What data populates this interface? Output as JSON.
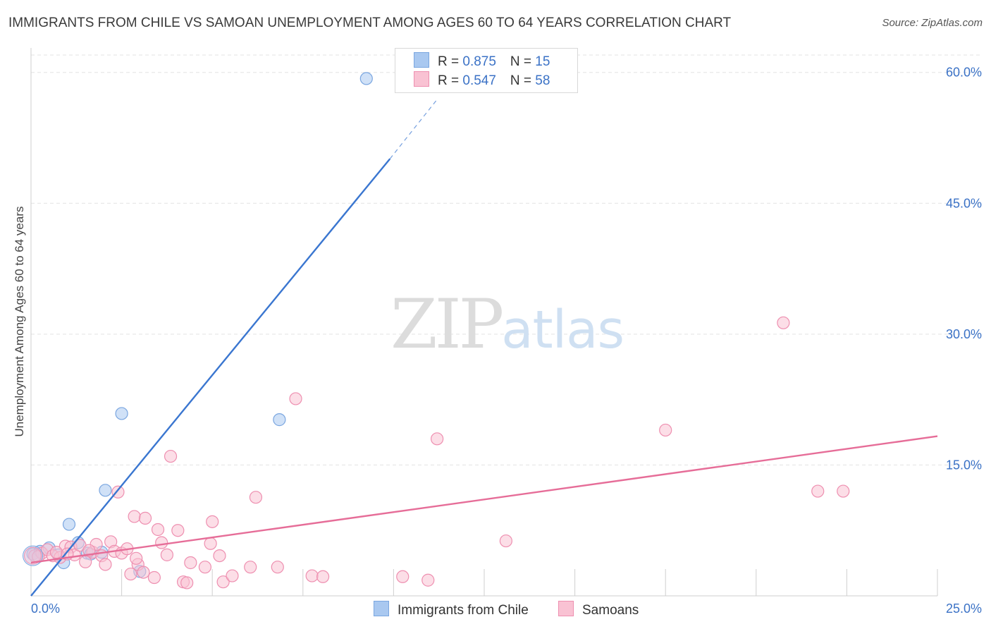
{
  "header": {
    "title": "IMMIGRANTS FROM CHILE VS SAMOAN UNEMPLOYMENT AMONG AGES 60 TO 64 YEARS CORRELATION CHART",
    "source": "Source: ZipAtlas.com"
  },
  "watermark": {
    "zip": "ZIP",
    "atlas": "atlas"
  },
  "legend": {
    "r_label": "R = ",
    "n_label": "N = ",
    "rows": [
      {
        "r": "0.875",
        "n": "15",
        "color": "#a9c8f0",
        "border": "#7aa6e0"
      },
      {
        "r": "0.547",
        "n": "58",
        "color": "#f9c2d3",
        "border": "#ee8fb0"
      }
    ]
  },
  "bottom_legend": {
    "items": [
      {
        "label": "Immigrants from Chile",
        "color": "#a9c8f0",
        "border": "#7aa6e0"
      },
      {
        "label": "Samoans",
        "color": "#f9c2d3",
        "border": "#ee8fb0"
      }
    ]
  },
  "chart_data": {
    "type": "scatter",
    "title": "IMMIGRANTS FROM CHILE VS SAMOAN UNEMPLOYMENT AMONG AGES 60 TO 64 YEARS CORRELATION CHART",
    "xlabel": "",
    "ylabel": "Unemployment Among Ages 60 to 64 years",
    "xlim": [
      0,
      25
    ],
    "ylim": [
      0,
      62
    ],
    "x_tick_labels": [
      "0.0%",
      "25.0%"
    ],
    "y_ticks": [
      15,
      30,
      45,
      60
    ],
    "y_tick_labels": [
      "15.0%",
      "30.0%",
      "45.0%",
      "60.0%"
    ],
    "grid": true,
    "legend_position": "top-center",
    "series": [
      {
        "name": "Immigrants from Chile",
        "color": "#a9c8f0",
        "stroke": "#7aa6e0",
        "line_color": "#3a76d0",
        "trend": {
          "x0": 0.0,
          "y0": 0.0,
          "x1": 9.9,
          "y1": 50.1,
          "dash_to_x": 11.2,
          "dash_to_y": 56.9
        },
        "points": [
          [
            0.05,
            4.8
          ],
          [
            0.25,
            5.1
          ],
          [
            0.5,
            5.5
          ],
          [
            0.75,
            4.7
          ],
          [
            0.9,
            3.8
          ],
          [
            1.05,
            8.2
          ],
          [
            1.3,
            6.1
          ],
          [
            1.55,
            4.9
          ],
          [
            1.65,
            4.8
          ],
          [
            1.95,
            5.0
          ],
          [
            2.05,
            12.1
          ],
          [
            2.5,
            20.9
          ],
          [
            3.0,
            2.8
          ],
          [
            6.85,
            20.2
          ],
          [
            9.25,
            59.3
          ]
        ]
      },
      {
        "name": "Samoans",
        "color": "#f9c2d3",
        "stroke": "#ee8fb0",
        "line_color": "#e66d98",
        "trend": {
          "x0": 0.0,
          "y0": 3.8,
          "x1": 25.0,
          "y1": 18.3
        },
        "points": [
          [
            0.1,
            4.6
          ],
          [
            0.3,
            4.9
          ],
          [
            0.45,
            5.3
          ],
          [
            0.6,
            4.6
          ],
          [
            0.8,
            4.4
          ],
          [
            0.95,
            5.7
          ],
          [
            1.1,
            5.6
          ],
          [
            1.2,
            4.7
          ],
          [
            1.35,
            5.8
          ],
          [
            1.5,
            3.9
          ],
          [
            1.7,
            5.0
          ],
          [
            1.8,
            5.9
          ],
          [
            1.95,
            4.6
          ],
          [
            2.05,
            3.6
          ],
          [
            2.2,
            6.2
          ],
          [
            2.3,
            5.1
          ],
          [
            2.4,
            11.9
          ],
          [
            2.5,
            4.9
          ],
          [
            2.65,
            5.4
          ],
          [
            2.75,
            2.5
          ],
          [
            2.85,
            9.1
          ],
          [
            2.95,
            3.6
          ],
          [
            3.1,
            2.7
          ],
          [
            3.15,
            8.9
          ],
          [
            3.4,
            2.1
          ],
          [
            3.5,
            7.6
          ],
          [
            3.6,
            6.1
          ],
          [
            3.75,
            4.7
          ],
          [
            3.85,
            16.0
          ],
          [
            4.05,
            7.5
          ],
          [
            4.2,
            1.6
          ],
          [
            4.3,
            1.5
          ],
          [
            4.4,
            3.8
          ],
          [
            4.8,
            3.3
          ],
          [
            4.95,
            6.0
          ],
          [
            5.0,
            8.5
          ],
          [
            5.2,
            4.6
          ],
          [
            5.3,
            1.6
          ],
          [
            5.55,
            2.3
          ],
          [
            6.05,
            3.3
          ],
          [
            6.2,
            11.3
          ],
          [
            6.8,
            3.3
          ],
          [
            7.3,
            22.6
          ],
          [
            7.75,
            2.3
          ],
          [
            8.05,
            2.2
          ],
          [
            10.25,
            2.2
          ],
          [
            10.95,
            1.8
          ],
          [
            11.2,
            18.0
          ],
          [
            13.1,
            6.3
          ],
          [
            17.5,
            19.0
          ],
          [
            20.75,
            31.3
          ],
          [
            21.7,
            12.0
          ],
          [
            22.4,
            12.0
          ],
          [
            0.2,
            4.5
          ],
          [
            0.7,
            5.0
          ],
          [
            1.0,
            4.8
          ],
          [
            1.6,
            5.2
          ],
          [
            2.9,
            4.3
          ]
        ]
      }
    ]
  }
}
